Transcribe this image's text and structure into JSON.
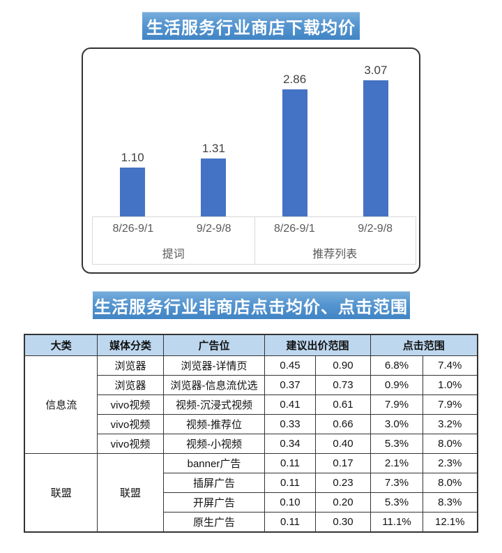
{
  "banners": {
    "chart_title": "生活服务行业商店下载均价",
    "table_title": "生活服务行业非商店点击均价、点击范围",
    "gradient_top": "#79AEDC",
    "gradient_bottom": "#4184C4",
    "text_color": "#ffffff"
  },
  "chart_data": {
    "type": "bar",
    "title": "生活服务行业商店下载均价",
    "xlabel": "",
    "ylabel": "",
    "categories": [
      "8/26-9/1",
      "9/2-9/8",
      "8/26-9/1",
      "9/2-9/8"
    ],
    "values": [
      1.1,
      1.31,
      2.86,
      3.07
    ],
    "value_labels": [
      "1.10",
      "1.31",
      "2.86",
      "3.07"
    ],
    "groups": [
      {
        "label": "提词",
        "categories": [
          "8/26-9/1",
          "9/2-9/8"
        ],
        "values": [
          1.1,
          1.31
        ]
      },
      {
        "label": "推荐列表",
        "categories": [
          "8/26-9/1",
          "9/2-9/8"
        ],
        "values": [
          2.86,
          3.07
        ]
      }
    ],
    "bar_color": "#4472C4",
    "ylim": [
      0,
      3.5
    ],
    "grid": false,
    "legend": false,
    "axis_text_color": "#595959",
    "value_text_color": "#404040"
  },
  "table": {
    "header_bg": "#BDD7EE",
    "columns": [
      {
        "label": "大类",
        "span": 1
      },
      {
        "label": "媒体分类",
        "span": 1
      },
      {
        "label": "广告位",
        "span": 1
      },
      {
        "label": "建议出价范围",
        "span": 2
      },
      {
        "label": "点击范围",
        "span": 2
      }
    ],
    "sections": [
      {
        "category": "信息流",
        "rows": [
          {
            "media": "浏览器",
            "ad_slot": "浏览器-详情页",
            "bid_min": "0.45",
            "bid_max": "0.90",
            "ctr_min": "6.8%",
            "ctr_max": "7.4%"
          },
          {
            "media": "浏览器",
            "ad_slot": "浏览器-信息流优选",
            "bid_min": "0.37",
            "bid_max": "0.73",
            "ctr_min": "0.9%",
            "ctr_max": "1.0%"
          },
          {
            "media": "vivo视频",
            "ad_slot": "视频-沉浸式视频",
            "bid_min": "0.41",
            "bid_max": "0.61",
            "ctr_min": "7.9%",
            "ctr_max": "7.9%"
          },
          {
            "media": "vivo视频",
            "ad_slot": "视频-推荐位",
            "bid_min": "0.33",
            "bid_max": "0.66",
            "ctr_min": "3.0%",
            "ctr_max": "3.2%"
          },
          {
            "media": "vivo视频",
            "ad_slot": "视频-小视频",
            "bid_min": "0.34",
            "bid_max": "0.40",
            "ctr_min": "5.3%",
            "ctr_max": "8.0%"
          }
        ]
      },
      {
        "category": "联盟",
        "merged_media": "联盟",
        "rows": [
          {
            "ad_slot": "banner广告",
            "bid_min": "0.11",
            "bid_max": "0.17",
            "ctr_min": "2.1%",
            "ctr_max": "2.3%"
          },
          {
            "ad_slot": "插屏广告",
            "bid_min": "0.11",
            "bid_max": "0.23",
            "ctr_min": "7.3%",
            "ctr_max": "8.0%"
          },
          {
            "ad_slot": "开屏广告",
            "bid_min": "0.10",
            "bid_max": "0.20",
            "ctr_min": "5.3%",
            "ctr_max": "8.3%"
          },
          {
            "ad_slot": "原生广告",
            "bid_min": "0.11",
            "bid_max": "0.30",
            "ctr_min": "11.1%",
            "ctr_max": "12.1%"
          }
        ]
      }
    ]
  }
}
